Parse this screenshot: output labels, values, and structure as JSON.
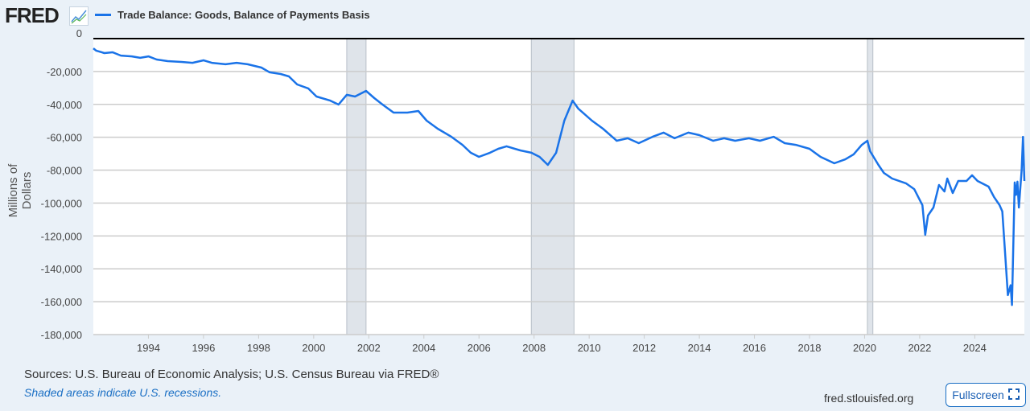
{
  "header": {
    "logo": "FRED",
    "series_label": "Trade Balance: Goods, Balance of Payments Basis"
  },
  "footer": {
    "sources": "Sources: U.S. Bureau of Economic Analysis; U.S. Census Bureau via FRED®",
    "recession_note": "Shaded areas indicate U.S. recessions.",
    "site": "fred.stlouisfed.org",
    "fullscreen_label": "Fullscreen"
  },
  "colors": {
    "line": "#1a73e8",
    "recession": "#dfe4ea",
    "background": "#eaf1f8"
  },
  "chart_data": {
    "type": "line",
    "title": "Trade Balance: Goods, Balance of Payments Basis",
    "xlabel": "",
    "ylabel": "Millions of Dollars",
    "xlim": [
      1992.0,
      2025.8
    ],
    "ylim": [
      -180000,
      0
    ],
    "xticks": [
      "1994",
      "1996",
      "1998",
      "2000",
      "2002",
      "2004",
      "2006",
      "2008",
      "2010",
      "2012",
      "2014",
      "2016",
      "2018",
      "2020",
      "2022",
      "2024"
    ],
    "yticks": [
      "0",
      "-20,000",
      "-40,000",
      "-60,000",
      "-80,000",
      "-100,000",
      "-120,000",
      "-140,000",
      "-160,000",
      "-180,000"
    ],
    "grid": true,
    "recessions": [
      [
        2001.2,
        2001.9
      ],
      [
        2007.9,
        2009.45
      ],
      [
        2020.1,
        2020.3
      ]
    ],
    "series": [
      {
        "name": "Trade Balance: Goods, Balance of Payments Basis",
        "points": [
          [
            1992.0,
            -5900
          ],
          [
            1992.1,
            -7300
          ],
          [
            1992.4,
            -8800
          ],
          [
            1992.7,
            -8300
          ],
          [
            1993.0,
            -10300
          ],
          [
            1993.4,
            -10800
          ],
          [
            1993.7,
            -11700
          ],
          [
            1994.0,
            -10800
          ],
          [
            1994.3,
            -12700
          ],
          [
            1994.7,
            -13700
          ],
          [
            1995.2,
            -14200
          ],
          [
            1995.6,
            -14700
          ],
          [
            1996.0,
            -13200
          ],
          [
            1996.3,
            -14700
          ],
          [
            1996.8,
            -15600
          ],
          [
            1997.2,
            -14700
          ],
          [
            1997.6,
            -15600
          ],
          [
            1998.1,
            -17600
          ],
          [
            1998.4,
            -20500
          ],
          [
            1998.8,
            -21500
          ],
          [
            1999.1,
            -23000
          ],
          [
            1999.4,
            -27900
          ],
          [
            1999.8,
            -30300
          ],
          [
            2000.1,
            -35200
          ],
          [
            2000.6,
            -37700
          ],
          [
            2000.9,
            -40100
          ],
          [
            2001.2,
            -34200
          ],
          [
            2001.5,
            -35200
          ],
          [
            2001.9,
            -31800
          ],
          [
            2002.2,
            -36200
          ],
          [
            2002.5,
            -40100
          ],
          [
            2002.9,
            -45000
          ],
          [
            2003.4,
            -45000
          ],
          [
            2003.8,
            -44000
          ],
          [
            2004.1,
            -49900
          ],
          [
            2004.5,
            -54800
          ],
          [
            2005.0,
            -59700
          ],
          [
            2005.4,
            -64600
          ],
          [
            2005.7,
            -69400
          ],
          [
            2006.0,
            -71900
          ],
          [
            2006.4,
            -69400
          ],
          [
            2006.7,
            -67000
          ],
          [
            2007.0,
            -65500
          ],
          [
            2007.5,
            -68000
          ],
          [
            2007.9,
            -69400
          ],
          [
            2008.2,
            -71900
          ],
          [
            2008.5,
            -76800
          ],
          [
            2008.8,
            -69400
          ],
          [
            2009.1,
            -49900
          ],
          [
            2009.4,
            -37700
          ],
          [
            2009.6,
            -42500
          ],
          [
            2010.1,
            -49900
          ],
          [
            2010.5,
            -54800
          ],
          [
            2011.0,
            -62100
          ],
          [
            2011.4,
            -60600
          ],
          [
            2011.8,
            -63600
          ],
          [
            2012.3,
            -59700
          ],
          [
            2012.7,
            -57200
          ],
          [
            2013.1,
            -60600
          ],
          [
            2013.6,
            -57200
          ],
          [
            2014.0,
            -58700
          ],
          [
            2014.5,
            -62100
          ],
          [
            2014.9,
            -60600
          ],
          [
            2015.3,
            -62100
          ],
          [
            2015.8,
            -60600
          ],
          [
            2016.2,
            -62100
          ],
          [
            2016.7,
            -59700
          ],
          [
            2017.1,
            -63600
          ],
          [
            2017.5,
            -64600
          ],
          [
            2018.0,
            -67000
          ],
          [
            2018.4,
            -71900
          ],
          [
            2018.9,
            -75800
          ],
          [
            2019.3,
            -73400
          ],
          [
            2019.6,
            -70400
          ],
          [
            2019.9,
            -64600
          ],
          [
            2020.1,
            -62100
          ],
          [
            2020.2,
            -68500
          ],
          [
            2020.5,
            -76800
          ],
          [
            2020.7,
            -81700
          ],
          [
            2021.0,
            -85100
          ],
          [
            2021.5,
            -88000
          ],
          [
            2021.8,
            -91500
          ],
          [
            2022.1,
            -101300
          ],
          [
            2022.2,
            -119300
          ],
          [
            2022.3,
            -107600
          ],
          [
            2022.5,
            -102700
          ],
          [
            2022.7,
            -89000
          ],
          [
            2022.9,
            -93000
          ],
          [
            2023.0,
            -85100
          ],
          [
            2023.2,
            -93900
          ],
          [
            2023.4,
            -86600
          ],
          [
            2023.7,
            -86600
          ],
          [
            2023.9,
            -83100
          ],
          [
            2024.1,
            -86600
          ],
          [
            2024.5,
            -90000
          ],
          [
            2024.7,
            -96300
          ],
          [
            2024.9,
            -101300
          ],
          [
            2025.0,
            -105100
          ],
          [
            2025.1,
            -130000
          ],
          [
            2025.2,
            -156000
          ],
          [
            2025.3,
            -150000
          ],
          [
            2025.35,
            -162000
          ],
          [
            2025.45,
            -87500
          ],
          [
            2025.5,
            -95000
          ],
          [
            2025.55,
            -87000
          ],
          [
            2025.6,
            -102700
          ],
          [
            2025.7,
            -80000
          ],
          [
            2025.75,
            -59700
          ],
          [
            2025.8,
            -86600
          ]
        ]
      }
    ]
  }
}
